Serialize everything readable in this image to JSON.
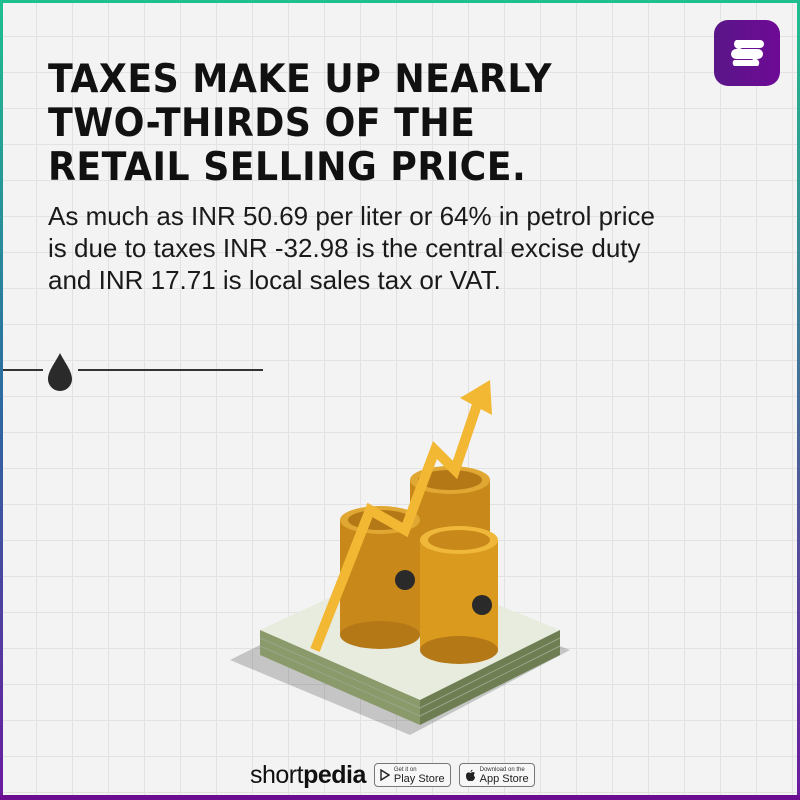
{
  "headline": [
    "TAXES MAKE UP NEARLY",
    "TWO-THIRDS OF THE",
    "RETAIL SELLING PRICE."
  ],
  "body": "As much as INR 50.69 per liter or 64% in petrol price is due to taxes INR -32.98 is the central excise duty and INR 17.71 is local sales tax or VAT.",
  "footer": {
    "brand_light": "short",
    "brand_bold": "pedia",
    "play_small": "Get it on",
    "play_main": "Play Store",
    "app_small": "Download on the",
    "app_main": "App Store"
  },
  "colors": {
    "accent_purple": "#6a0d91",
    "accent_green": "#1fbf8f",
    "barrel": "#d99a1e",
    "arrow": "#f2b733"
  },
  "icons": [
    "shortpedia-logo-icon",
    "oil-drop-icon",
    "play-store-icon",
    "apple-icon"
  ]
}
